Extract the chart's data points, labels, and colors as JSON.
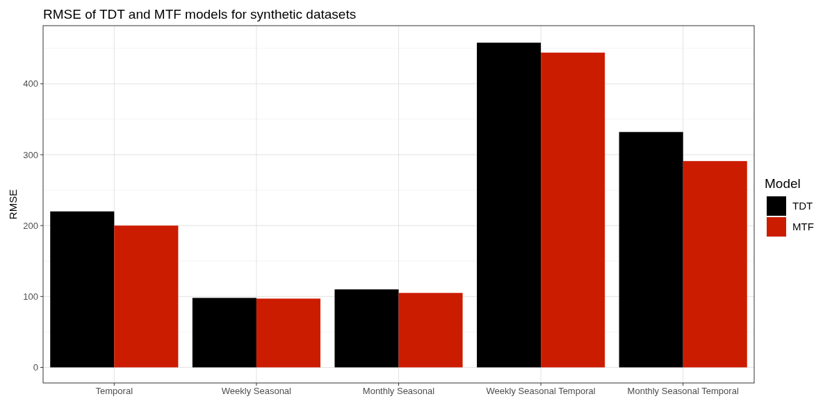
{
  "chart_data": {
    "type": "bar",
    "title": "RMSE of TDT and MTF models for synthetic datasets",
    "ylabel": "RMSE",
    "legend_title": "Model",
    "categories": [
      "Temporal",
      "Weekly Seasonal",
      "Monthly Seasonal",
      "Weekly Seasonal Temporal",
      "Monthly Seasonal Temporal"
    ],
    "series": [
      {
        "name": "TDT",
        "color": "#000000",
        "values": [
          220,
          98,
          110,
          458,
          332
        ]
      },
      {
        "name": "MTF",
        "color": "#cc1c00",
        "values": [
          200,
          97,
          105,
          444,
          291
        ]
      }
    ],
    "ylim": [
      -22,
      482
    ],
    "yticks": [
      0,
      100,
      200,
      300,
      400
    ],
    "grid": true,
    "legend": "right"
  }
}
